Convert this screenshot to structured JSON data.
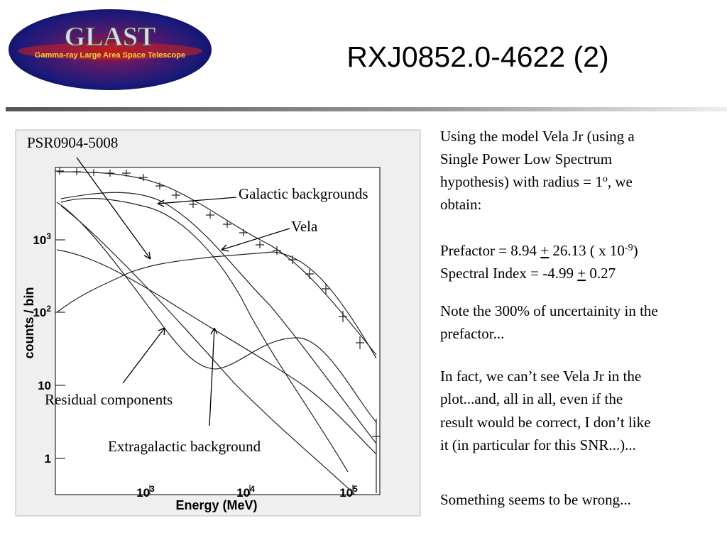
{
  "header": {
    "logo_title": "GLAST",
    "logo_subtitle": "Gamma-ray Large Area Space Telescope",
    "title": "RXJ0852.0-4622 (2)"
  },
  "figure": {
    "annotations": {
      "psr": "PSR0904-5008",
      "galactic": "Galactic backgrounds",
      "vela": "Vela",
      "residual": "Residual components",
      "extragalactic": "Extragalactic background"
    },
    "y_label": "counts / bin",
    "x_label": "Energy (MeV)",
    "y_ticks": [
      {
        "base": "10",
        "exp": "3"
      },
      {
        "base": "10",
        "exp": "2"
      },
      "10",
      "1"
    ],
    "x_ticks": [
      {
        "base": "10",
        "exp": "3"
      },
      {
        "base": "10",
        "exp": "4"
      },
      {
        "base": "10",
        "exp": "5"
      }
    ]
  },
  "notes": {
    "p1": {
      "l1": "Using the model Vela Jr (using a",
      "l2": "Single Power Low Spectrum",
      "l3a": "hypothesis) with radius = 1",
      "l3sup": "o",
      "l3b": ", we",
      "l4": "obtain:"
    },
    "p2": {
      "pref_a": "Prefactor = 8.94 ",
      "pm1": "+",
      "pref_b": " 26.13 ( x 10",
      "pref_sup": "-9",
      "pref_c": ")",
      "idx_a": "Spectral Index = -4.99 ",
      "pm2": "+",
      "idx_b": " 0.27"
    },
    "p3": [
      "Note the 300% of uncertainity in the",
      "prefactor..."
    ],
    "p4": [
      "In fact, we can’t see Vela Jr in the",
      "plot...and, all in all, even if the",
      "result would be correct, I don’t like",
      "it (in particular for this SNR...)..."
    ],
    "p5": "Something seems to be wrong..."
  }
}
